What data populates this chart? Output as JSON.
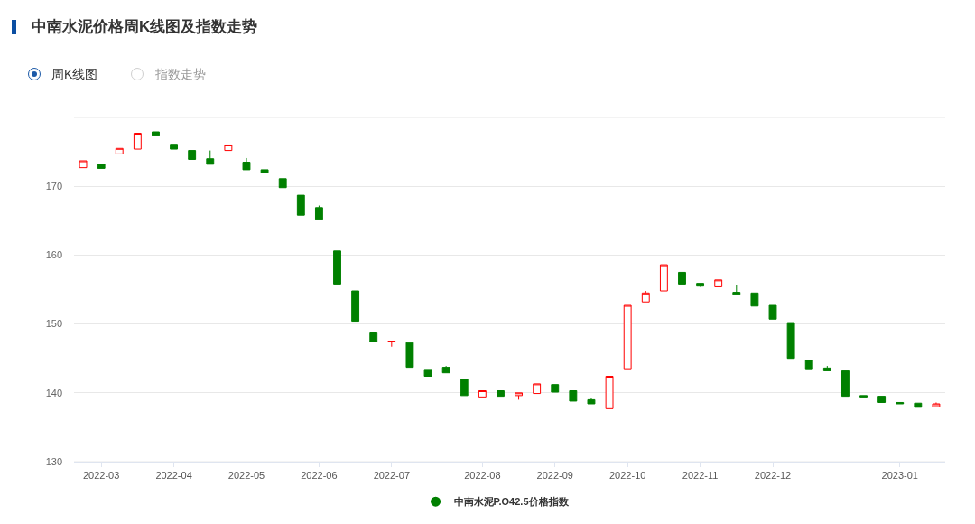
{
  "chart_data": {
    "type": "candlestick",
    "title": "中南水泥价格周K线图及指数走势",
    "annotations": [
      "周K线图",
      "指数走势"
    ],
    "categories": [
      null,
      "2022-03",
      null,
      null,
      null,
      "2022-04",
      null,
      null,
      null,
      "2022-05",
      null,
      null,
      null,
      "2022-06",
      null,
      null,
      null,
      "2022-07",
      null,
      null,
      null,
      null,
      "2022-08",
      null,
      null,
      null,
      "2022-09",
      null,
      null,
      null,
      "2022-10",
      null,
      null,
      null,
      "2022-11",
      null,
      null,
      null,
      "2022-12",
      null,
      null,
      null,
      null,
      null,
      null,
      "2023-01",
      null,
      null
    ],
    "ylim": [
      130,
      180
    ],
    "yticks": [
      130,
      140,
      150,
      160,
      170,
      {
        "value": 180,
        "label": null
      }
    ],
    "grid": "y",
    "legend": "bottom",
    "series": [
      {
        "name": "中南水泥P.O42.5价格指数",
        "color": "#008000",
        "colors": [
          "#ff0000",
          "#008000",
          "#ff0000",
          "#ff0000",
          "#008000",
          "#008000",
          "#008000",
          "#008000",
          "#ff0000",
          "#008000",
          "#008000",
          "#008000",
          "#008000",
          "#008000",
          "#008000",
          "#008000",
          "#008000",
          "#ff0000",
          "#008000",
          "#008000",
          "#008000",
          "#008000",
          "#ff0000",
          "#008000",
          "#ff0000",
          "#ff0000",
          "#008000",
          "#008000",
          "#008000",
          "#ff0000",
          "#ff0000",
          "#ff0000",
          "#ff0000",
          "#008000",
          "#008000",
          "#ff0000",
          "#008000",
          "#008000",
          "#008000",
          "#008000",
          "#008000",
          "#008000",
          "#008000",
          "#008000",
          "#008000",
          "#008000",
          "#008000",
          "#ff0000"
        ],
        "ohlc": [
          [
            172.7,
            173.7,
            172.7,
            173.7
          ],
          [
            173.2,
            173.2,
            172.6,
            172.6
          ],
          [
            174.7,
            175.5,
            174.7,
            175.5
          ],
          [
            175.4,
            177.7,
            175.4,
            177.7
          ],
          [
            177.9,
            177.9,
            177.4,
            177.4
          ],
          [
            176.1,
            176.1,
            175.4,
            175.4
          ],
          [
            175.2,
            175.2,
            173.9,
            173.9
          ],
          [
            174.0,
            175.2,
            173.2,
            173.2
          ],
          [
            175.2,
            176.0,
            175.2,
            176.0
          ],
          [
            173.5,
            174.1,
            172.4,
            172.4
          ],
          [
            172.4,
            172.4,
            172.0,
            172.0
          ],
          [
            171.1,
            171.1,
            169.8,
            169.8
          ],
          [
            168.7,
            168.7,
            165.8,
            165.8
          ],
          [
            166.9,
            167.2,
            165.2,
            165.2
          ],
          [
            160.6,
            160.6,
            155.8,
            155.8
          ],
          [
            154.8,
            154.8,
            150.4,
            150.4
          ],
          [
            148.7,
            148.7,
            147.4,
            147.4
          ],
          [
            147.4,
            147.5,
            146.7,
            147.5
          ],
          [
            147.3,
            147.3,
            143.7,
            143.7
          ],
          [
            143.4,
            143.4,
            142.4,
            142.4
          ],
          [
            143.7,
            143.9,
            142.9,
            142.9
          ],
          [
            142.0,
            142.0,
            139.6,
            139.6
          ],
          [
            139.4,
            140.3,
            139.4,
            140.3
          ],
          [
            140.3,
            140.3,
            139.5,
            139.5
          ],
          [
            139.6,
            140.0,
            139.0,
            140.0
          ],
          [
            139.9,
            141.3,
            139.9,
            141.3
          ],
          [
            141.2,
            141.2,
            140.1,
            140.1
          ],
          [
            140.3,
            140.3,
            138.8,
            138.8
          ],
          [
            139.0,
            139.2,
            138.4,
            138.4
          ],
          [
            137.7,
            142.4,
            137.7,
            142.4
          ],
          [
            143.5,
            152.7,
            143.5,
            152.7
          ],
          [
            153.2,
            154.8,
            153.2,
            154.5
          ],
          [
            154.8,
            158.6,
            154.8,
            158.6
          ],
          [
            157.5,
            157.5,
            155.8,
            155.8
          ],
          [
            155.9,
            155.9,
            155.4,
            155.5
          ],
          [
            155.4,
            156.4,
            155.4,
            156.4
          ],
          [
            154.6,
            155.7,
            154.3,
            154.3
          ],
          [
            154.5,
            154.5,
            152.6,
            152.6
          ],
          [
            152.7,
            152.7,
            150.7,
            150.7
          ],
          [
            150.2,
            150.2,
            145.0,
            145.0
          ],
          [
            144.7,
            144.7,
            143.5,
            143.5
          ],
          [
            143.6,
            143.9,
            143.2,
            143.2
          ],
          [
            143.2,
            143.2,
            139.5,
            139.5
          ],
          [
            139.6,
            139.6,
            139.4,
            139.4
          ],
          [
            139.5,
            139.5,
            138.6,
            138.6
          ],
          [
            138.6,
            138.6,
            138.4,
            138.4
          ],
          [
            138.5,
            138.5,
            137.9,
            137.9
          ],
          [
            138.0,
            138.6,
            138.0,
            138.4
          ]
        ]
      }
    ]
  }
}
